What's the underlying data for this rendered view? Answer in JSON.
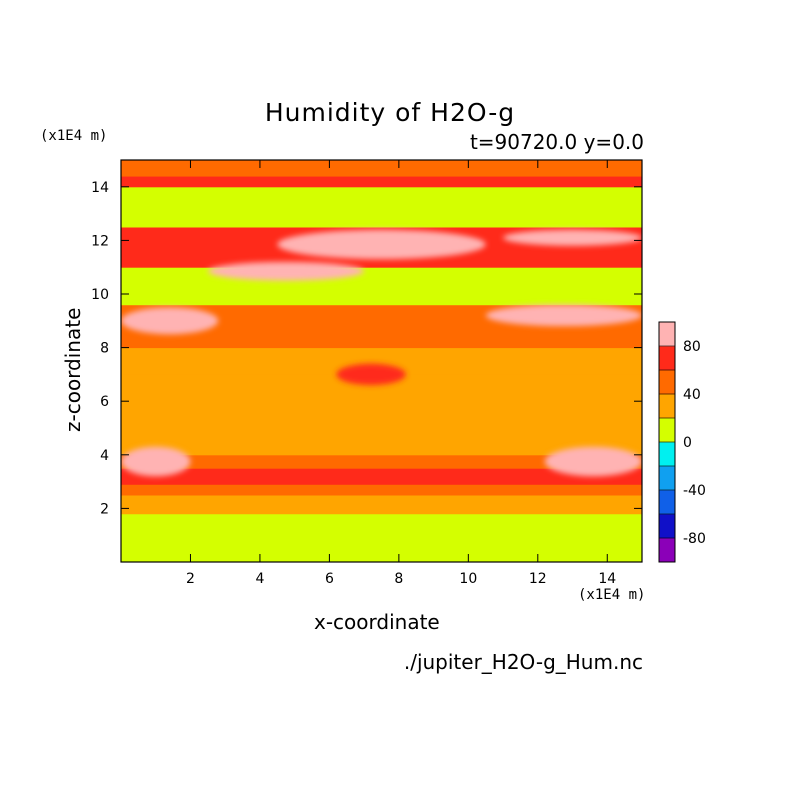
{
  "chart_data": {
    "type": "heatmap",
    "title": "Humidity of H2O-g",
    "subtitle": "t=90720.0 y=0.0",
    "xlabel": "x-coordinate",
    "ylabel": "z-coordinate",
    "x_unit": "(x1E4 m)",
    "y_unit": "(x1E4 m)",
    "xlim": [
      0,
      15
    ],
    "ylim": [
      0,
      15
    ],
    "x_ticks": [
      2,
      4,
      6,
      8,
      10,
      12,
      14
    ],
    "y_ticks": [
      2,
      4,
      6,
      8,
      10,
      12,
      14
    ],
    "colorbar": {
      "levels": [
        -100,
        -80,
        -60,
        -40,
        -20,
        0,
        20,
        40,
        60,
        80,
        100
      ],
      "colors": [
        "#8b00b8",
        "#1010c8",
        "#1060e8",
        "#10a0f0",
        "#00f0f0",
        "#d4ff00",
        "#ffa500",
        "#ff6a00",
        "#ff2a1a",
        "#ffb3b3"
      ],
      "tick_labels": [
        80,
        40,
        0,
        -40,
        -80
      ]
    },
    "bands": [
      {
        "z0": 0.0,
        "z1": 1.8,
        "level": "0-20"
      },
      {
        "z0": 1.8,
        "z1": 2.5,
        "level": "20-40"
      },
      {
        "z0": 2.5,
        "z1": 2.9,
        "level": "40-60"
      },
      {
        "z0": 2.9,
        "z1": 3.5,
        "level": "60-80"
      },
      {
        "z0": 3.5,
        "z1": 4.0,
        "level": "40-60"
      },
      {
        "z0": 4.0,
        "z1": 6.0,
        "level": "20-40"
      },
      {
        "z0": 6.0,
        "z1": 7.0,
        "level": "20-40"
      },
      {
        "z0": 7.0,
        "z1": 8.0,
        "level": "20-40"
      },
      {
        "z0": 8.0,
        "z1": 9.6,
        "level": "40-60"
      },
      {
        "z0": 9.6,
        "z1": 11.0,
        "level": "0-20"
      },
      {
        "z0": 11.0,
        "z1": 12.5,
        "level": "60-80"
      },
      {
        "z0": 12.5,
        "z1": 14.0,
        "level": "0-20"
      },
      {
        "z0": 14.0,
        "z1": 14.4,
        "level": "60-80"
      },
      {
        "z0": 14.4,
        "z1": 15.0,
        "level": "40-60"
      }
    ],
    "features": [
      {
        "x0": 0.0,
        "x1": 2.0,
        "z0": 3.2,
        "z1": 4.3,
        "level": "80-100"
      },
      {
        "x0": 12.2,
        "x1": 15.0,
        "z0": 3.2,
        "z1": 4.3,
        "level": "80-100"
      },
      {
        "x0": 6.2,
        "x1": 8.2,
        "z0": 6.6,
        "z1": 7.4,
        "level": "60-80"
      },
      {
        "x0": 0.0,
        "x1": 2.8,
        "z0": 8.5,
        "z1": 9.5,
        "level": "80-100"
      },
      {
        "x0": 10.5,
        "x1": 15.0,
        "z0": 8.8,
        "z1": 9.6,
        "level": "80-100"
      },
      {
        "x0": 2.5,
        "x1": 7.0,
        "z0": 10.5,
        "z1": 11.2,
        "level": "80-100"
      },
      {
        "x0": 4.5,
        "x1": 10.5,
        "z0": 11.3,
        "z1": 12.4,
        "level": "80-100"
      },
      {
        "x0": 11.0,
        "x1": 15.0,
        "z0": 11.8,
        "z1": 12.4,
        "level": "80-100"
      }
    ],
    "source_file": "./jupiter_H2O-g_Hum.nc"
  }
}
